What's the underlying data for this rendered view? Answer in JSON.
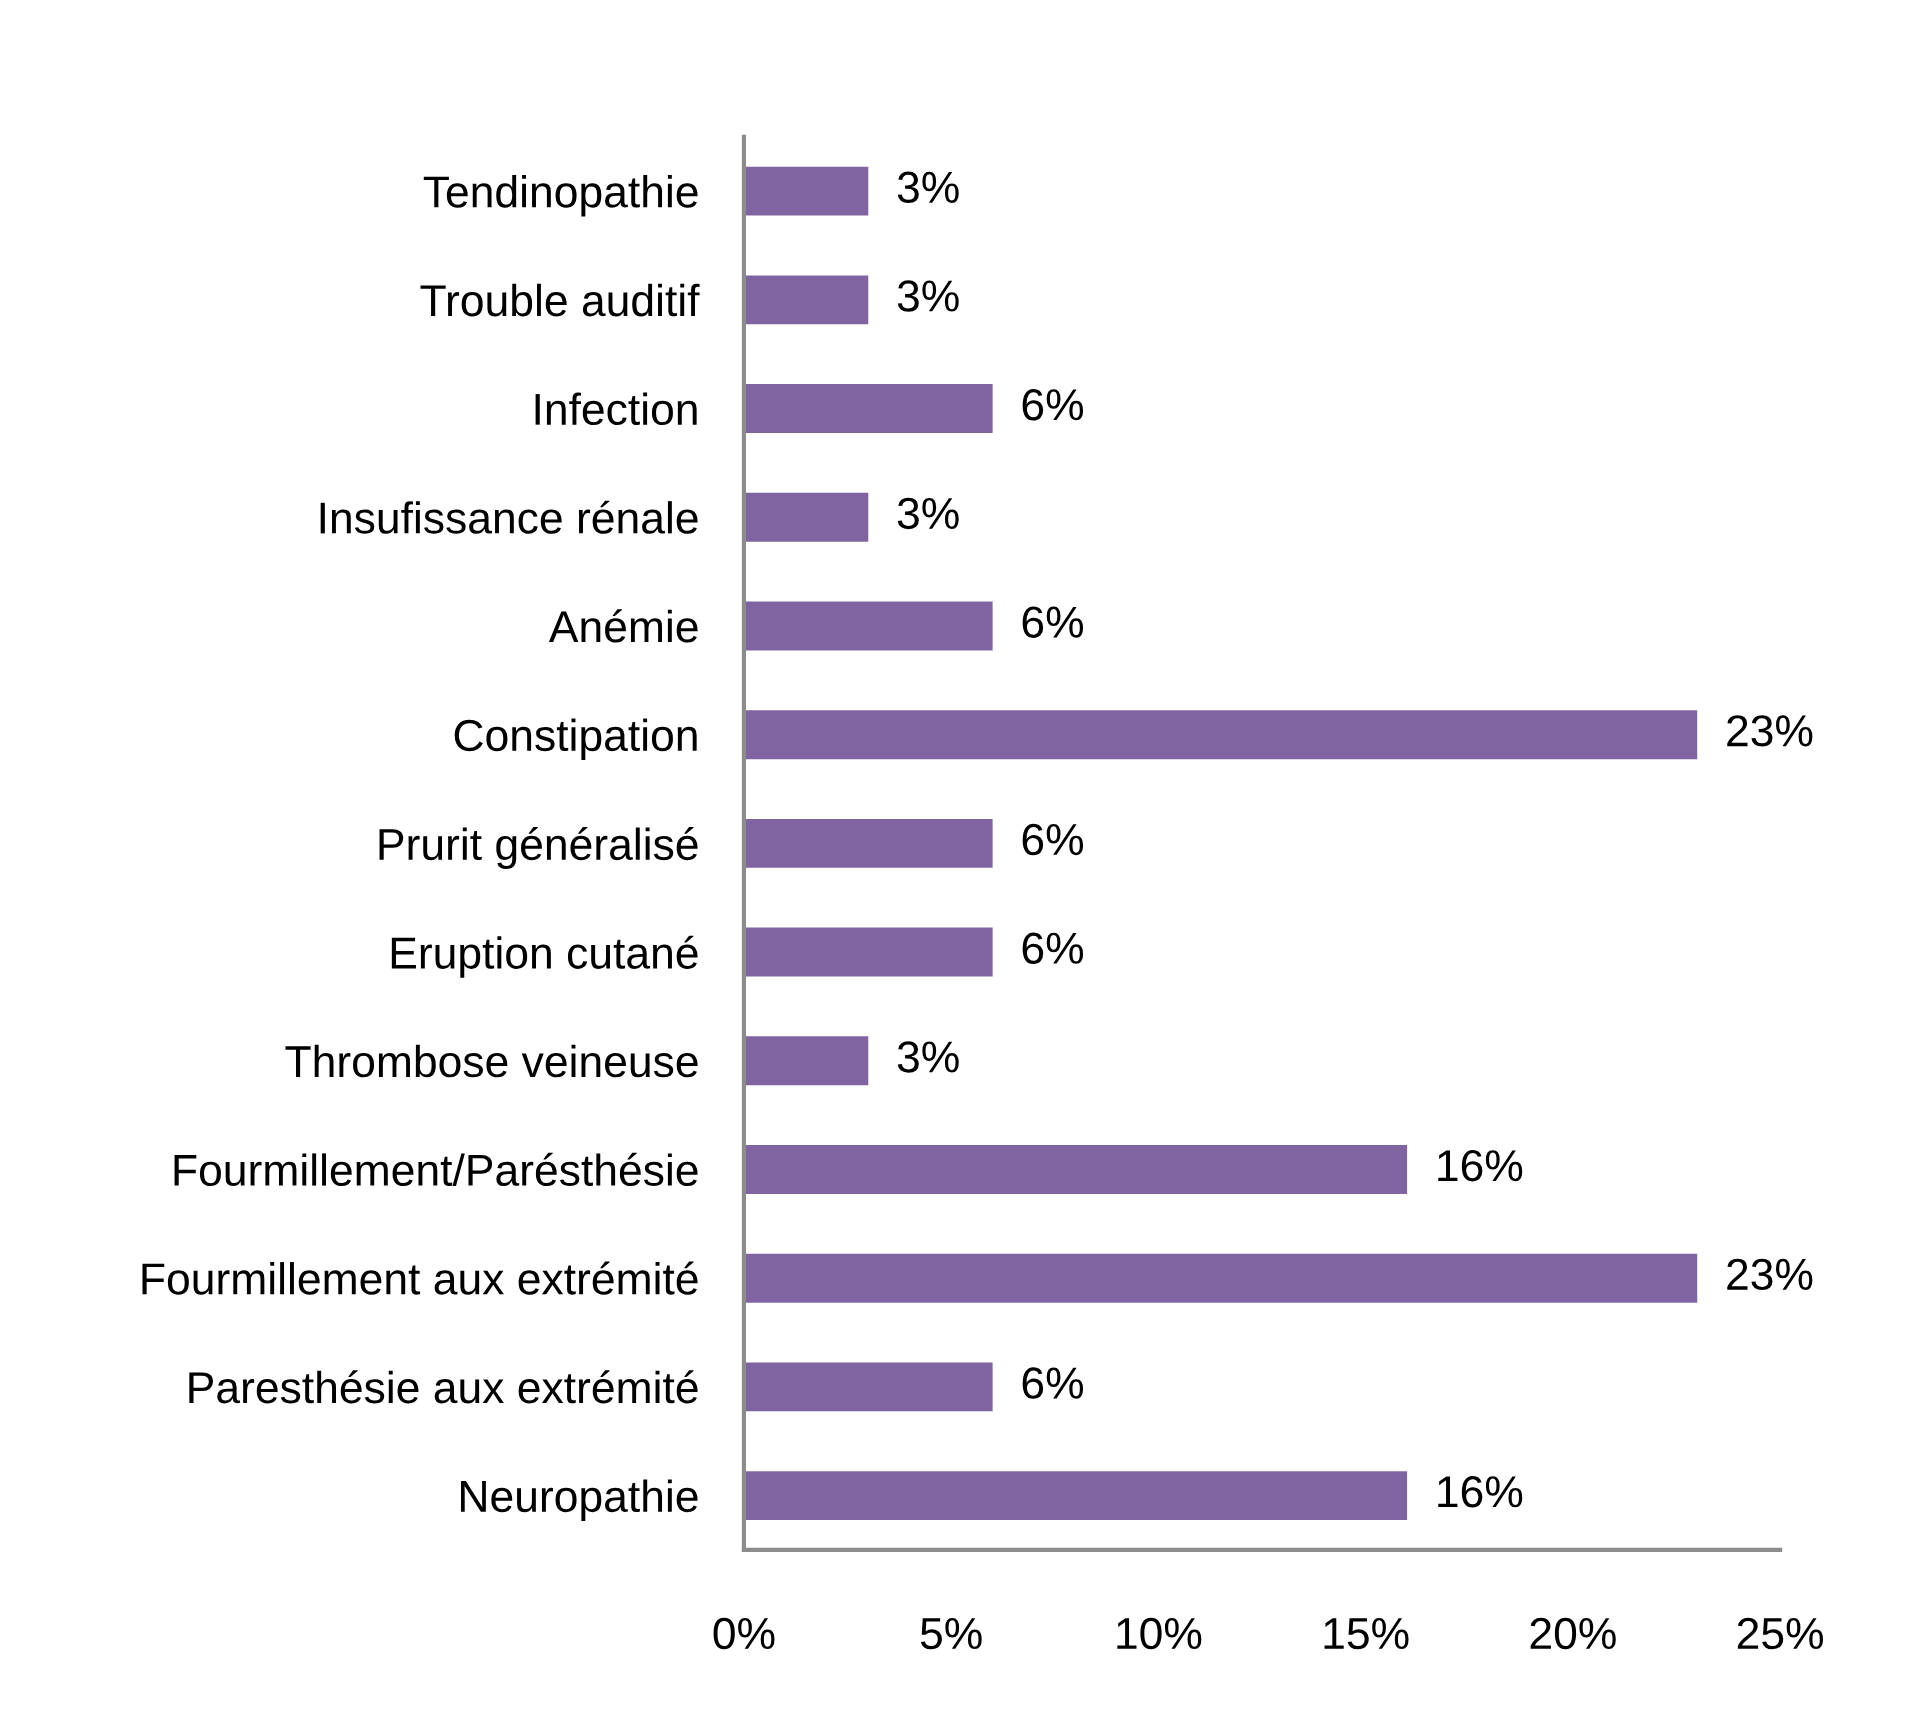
{
  "chart_data": {
    "type": "bar",
    "orientation": "horizontal",
    "categories": [
      "Tendinopathie",
      "Trouble auditif",
      "Infection",
      "Insufissance rénale",
      "Anémie",
      "Constipation",
      "Prurit généralisé",
      "Eruption cutané",
      "Thrombose veineuse",
      "Fourmillement/Parésthésie",
      "Fourmillement aux extrémité",
      "Paresthésie aux extrémité",
      "Neuropathie"
    ],
    "values": [
      3,
      3,
      6,
      3,
      6,
      23,
      6,
      6,
      3,
      16,
      23,
      6,
      16
    ],
    "value_labels": [
      "3%",
      "3%",
      "6%",
      "3%",
      "6%",
      "23%",
      "6%",
      "6%",
      "3%",
      "16%",
      "23%",
      "6%",
      "16%"
    ],
    "color": "#8064a2",
    "xlim": [
      0,
      25
    ],
    "xticks": [
      {
        "value": 0,
        "label": "0%"
      },
      {
        "value": 5,
        "label": "5%"
      },
      {
        "value": 10,
        "label": "10%"
      },
      {
        "value": 15,
        "label": "15%"
      },
      {
        "value": 20,
        "label": "20%"
      },
      {
        "value": 25,
        "label": "25%"
      }
    ],
    "grid": false,
    "legend": false
  }
}
